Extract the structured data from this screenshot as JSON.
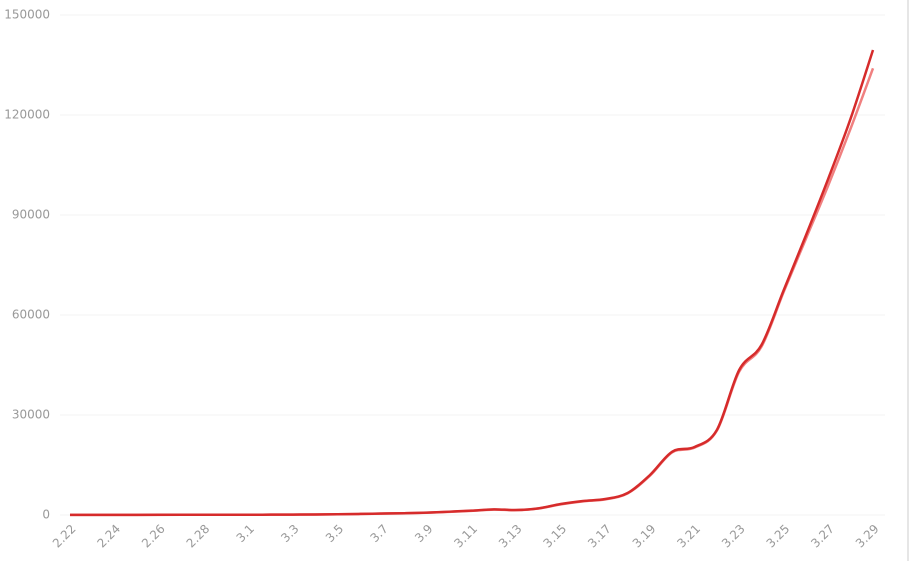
{
  "chart_data": {
    "type": "line",
    "categories": [
      "2.22",
      null,
      "2.24",
      null,
      "2.26",
      null,
      "2.28",
      null,
      "3.1",
      null,
      "3.3",
      null,
      "3.5",
      null,
      "3.7",
      null,
      "3.9",
      null,
      "3.11",
      null,
      "3.13",
      null,
      "3.15",
      null,
      "3.17",
      null,
      "3.19",
      null,
      "3.21",
      null,
      "3.23",
      null,
      "3.25",
      null,
      "3.27",
      null,
      "3.29"
    ],
    "series": [
      {
        "color": "#f08080",
        "values": [
          30,
          30,
          50,
          50,
          55,
          58,
          60,
          65,
          70,
          95,
          120,
          150,
          210,
          300,
          410,
          520,
          680,
          950,
          1250,
          1600,
          1450,
          1950,
          3200,
          4100,
          4700,
          6500,
          11800,
          18800,
          20200,
          25300,
          43000,
          50500,
          67000,
          83000,
          99000,
          116000,
          134000
        ]
      },
      {
        "color": "#d62b2b",
        "values": [
          35,
          35,
          53,
          53,
          59,
          60,
          62,
          68,
          75,
          100,
          124,
          158,
          221,
          319,
          435,
          541,
          704,
          994,
          1301,
          1700,
          1500,
          2000,
          3300,
          4200,
          4800,
          6600,
          12000,
          19000,
          20400,
          25500,
          43500,
          51000,
          67500,
          84000,
          101000,
          119000,
          139500
        ]
      }
    ],
    "ylim": [
      0,
      150000
    ],
    "yticks": [
      0,
      30000,
      60000,
      90000,
      120000,
      150000
    ],
    "grid": true
  }
}
